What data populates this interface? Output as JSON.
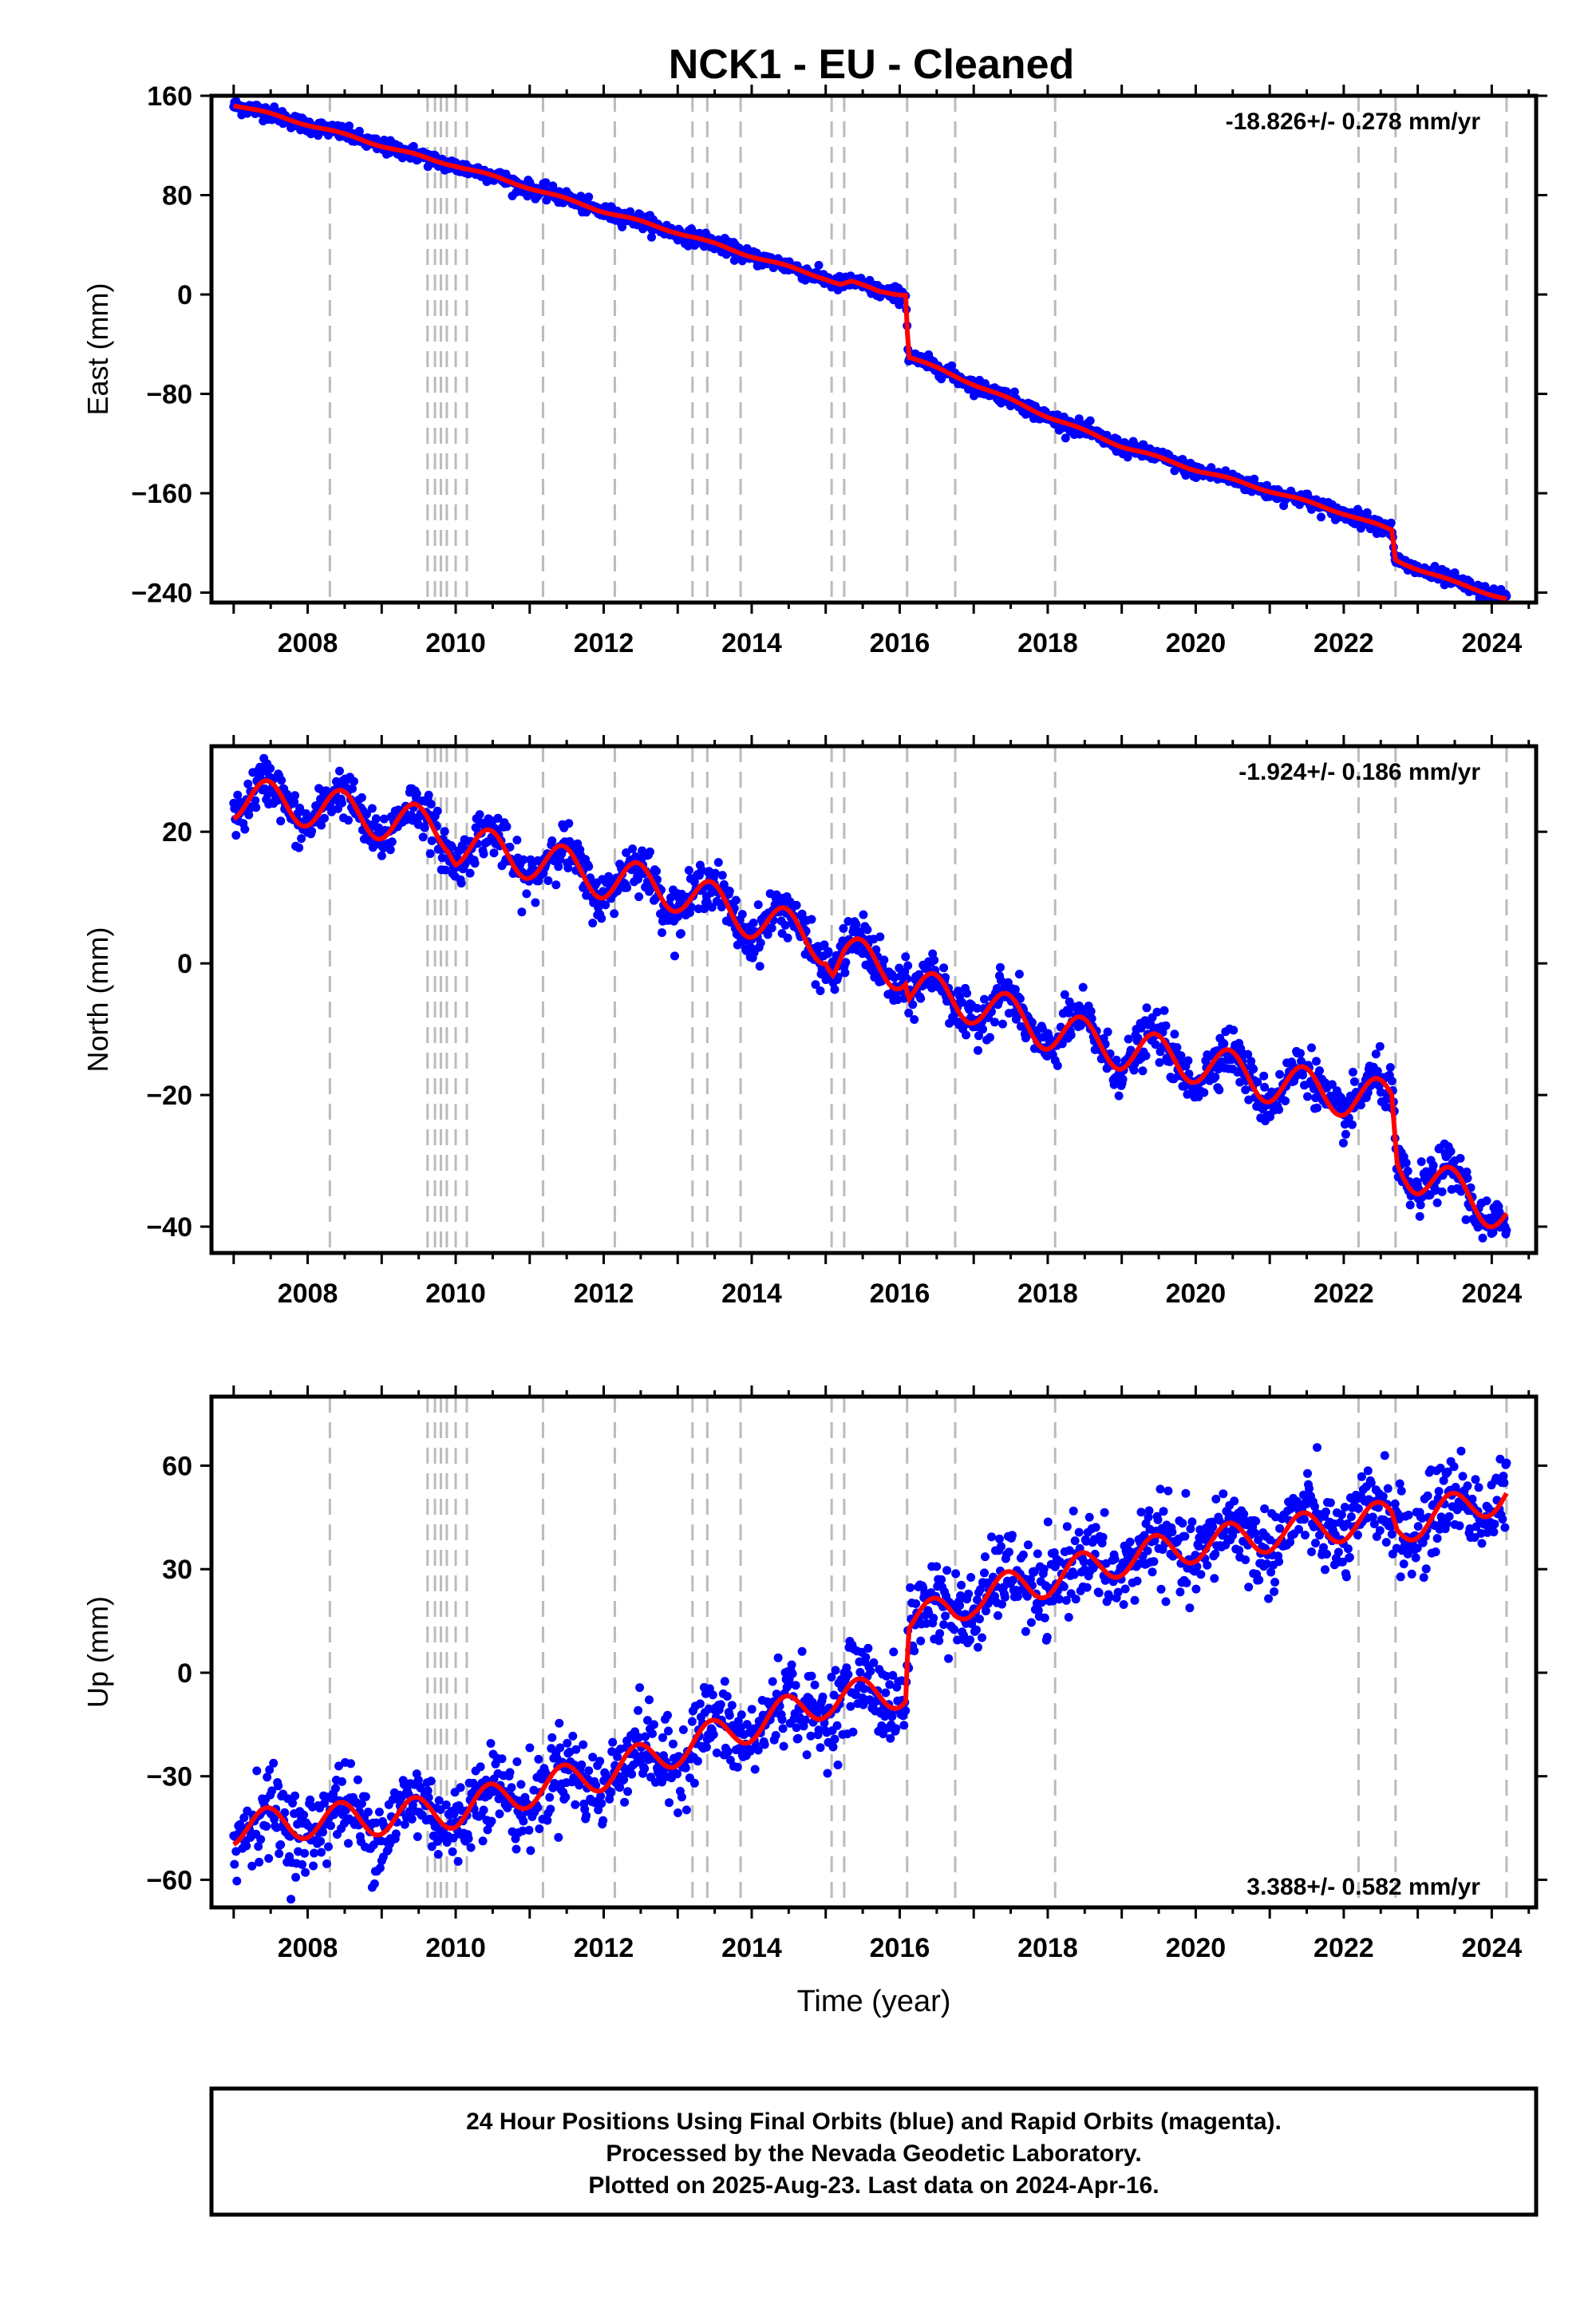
{
  "title": "NCK1  - EU - Cleaned",
  "footer": {
    "lines": [
      "24 Hour Positions Using Final Orbits (blue) and Rapid Orbits (magenta).",
      "Processed by the Nevada Geodetic Laboratory.",
      "Plotted on 2025-Aug-23. Last data on 2024-Apr-16."
    ]
  },
  "colors": {
    "final_orbits": "#0000ff",
    "model": "#ff0000",
    "event_lines": "#bbbbbb",
    "frame": "#000000"
  },
  "chart_data": [
    {
      "type": "scatter",
      "ylabel": "East (mm)",
      "xlabel": "",
      "rate_label": "-18.826+/- 0.278 mm/yr",
      "rate_position": "top-right",
      "xlim": [
        2006.7,
        2024.6
      ],
      "ylim": [
        -248,
        160
      ],
      "x_ticks": [
        2008,
        2010,
        2012,
        2014,
        2016,
        2018,
        2020,
        2022,
        2024
      ],
      "y_ticks": [
        160,
        80,
        0,
        -80,
        -160,
        -240
      ],
      "y_tick_labels": [
        "160",
        "80",
        "0",
        "−80",
        "−160",
        "−240"
      ],
      "event_lines": [
        2008.3,
        2009.62,
        2009.72,
        2009.8,
        2009.88,
        2010.0,
        2010.15,
        2011.18,
        2012.15,
        2013.2,
        2013.4,
        2013.85,
        2015.08,
        2015.25,
        2016.1,
        2016.75,
        2018.1,
        2022.2,
        2022.7,
        2024.2
      ],
      "trend_points": [
        [
          2007.0,
          153
        ],
        [
          2008.0,
          137
        ],
        [
          2009.0,
          120
        ],
        [
          2009.7,
          108
        ],
        [
          2010.0,
          104
        ],
        [
          2011.0,
          86
        ],
        [
          2012.0,
          67
        ],
        [
          2013.0,
          50
        ],
        [
          2014.0,
          31
        ],
        [
          2015.0,
          13
        ],
        [
          2015.2,
          8
        ],
        [
          2015.35,
          10
        ],
        [
          2015.7,
          3
        ],
        [
          2016.08,
          0
        ],
        [
          2016.12,
          -50
        ],
        [
          2017.0,
          -72
        ],
        [
          2018.0,
          -98
        ],
        [
          2019.0,
          -122
        ],
        [
          2020.0,
          -141
        ],
        [
          2021.0,
          -158
        ],
        [
          2022.0,
          -176
        ],
        [
          2022.65,
          -190
        ],
        [
          2022.7,
          -214
        ],
        [
          2023.5,
          -232
        ],
        [
          2024.2,
          -245
        ]
      ],
      "seasonal_amplitude": 1.0,
      "scatter_sigma": 3.0
    },
    {
      "type": "scatter",
      "ylabel": "North (mm)",
      "xlabel": "",
      "rate_label": "-1.924+/- 0.186 mm/yr",
      "rate_position": "top-right",
      "xlim": [
        2006.7,
        2024.6
      ],
      "ylim": [
        -44,
        33
      ],
      "x_ticks": [
        2008,
        2010,
        2012,
        2014,
        2016,
        2018,
        2020,
        2022,
        2024
      ],
      "y_ticks": [
        20,
        0,
        -20,
        -40
      ],
      "y_tick_labels": [
        "20",
        "0",
        "−20",
        "−40"
      ],
      "event_lines": [
        2008.3,
        2009.62,
        2009.72,
        2009.8,
        2009.88,
        2010.0,
        2010.15,
        2011.18,
        2012.15,
        2013.2,
        2013.4,
        2013.85,
        2015.08,
        2015.25,
        2016.1,
        2016.75,
        2018.1,
        2022.2,
        2022.7,
        2024.2
      ],
      "trend_points": [
        [
          2007.0,
          25
        ],
        [
          2008.0,
          24
        ],
        [
          2009.0,
          22
        ],
        [
          2009.9,
          20
        ],
        [
          2010.0,
          18
        ],
        [
          2011.0,
          16
        ],
        [
          2012.0,
          13
        ],
        [
          2013.0,
          11
        ],
        [
          2014.0,
          7
        ],
        [
          2015.0,
          3
        ],
        [
          2015.1,
          0
        ],
        [
          2015.25,
          1
        ],
        [
          2016.08,
          -1
        ],
        [
          2016.12,
          -4
        ],
        [
          2017.0,
          -6
        ],
        [
          2018.0,
          -10
        ],
        [
          2019.0,
          -13
        ],
        [
          2020.0,
          -15
        ],
        [
          2021.0,
          -18
        ],
        [
          2022.0,
          -20
        ],
        [
          2022.65,
          -21
        ],
        [
          2022.72,
          -30
        ],
        [
          2023.0,
          -32
        ],
        [
          2024.2,
          -38
        ]
      ],
      "seasonal_amplitude": 3.2,
      "scatter_sigma": 1.8
    },
    {
      "type": "scatter",
      "ylabel": "Up (mm)",
      "xlabel": "Time (year)",
      "rate_label": "3.388+/- 0.582 mm/yr",
      "rate_position": "bottom-right",
      "xlim": [
        2006.7,
        2024.6
      ],
      "ylim": [
        -68,
        80
      ],
      "x_ticks": [
        2008,
        2010,
        2012,
        2014,
        2016,
        2018,
        2020,
        2022,
        2024
      ],
      "y_ticks": [
        60,
        30,
        0,
        -30,
        -60
      ],
      "y_tick_labels": [
        "60",
        "30",
        "0",
        "−30",
        "−60"
      ],
      "event_lines": [
        2008.3,
        2009.62,
        2009.72,
        2009.8,
        2009.88,
        2010.0,
        2010.15,
        2011.18,
        2012.15,
        2013.2,
        2013.4,
        2013.85,
        2015.08,
        2015.25,
        2016.1,
        2016.75,
        2018.1,
        2022.2,
        2022.7,
        2024.2
      ],
      "trend_points": [
        [
          2007.0,
          -45
        ],
        [
          2008.0,
          -43
        ],
        [
          2009.0,
          -42
        ],
        [
          2010.0,
          -40
        ],
        [
          2011.0,
          -34
        ],
        [
          2012.0,
          -29
        ],
        [
          2013.0,
          -22
        ],
        [
          2014.0,
          -15
        ],
        [
          2015.0,
          -8
        ],
        [
          2016.08,
          -5
        ],
        [
          2016.12,
          15
        ],
        [
          2016.75,
          18
        ],
        [
          2017.0,
          22
        ],
        [
          2018.0,
          27
        ],
        [
          2019.0,
          33
        ],
        [
          2020.0,
          37
        ],
        [
          2021.0,
          40
        ],
        [
          2022.0,
          43
        ],
        [
          2022.65,
          45
        ],
        [
          2022.72,
          42
        ],
        [
          2024.2,
          52
        ]
      ],
      "seasonal_amplitude": 5.0,
      "scatter_sigma": 6.0
    }
  ]
}
